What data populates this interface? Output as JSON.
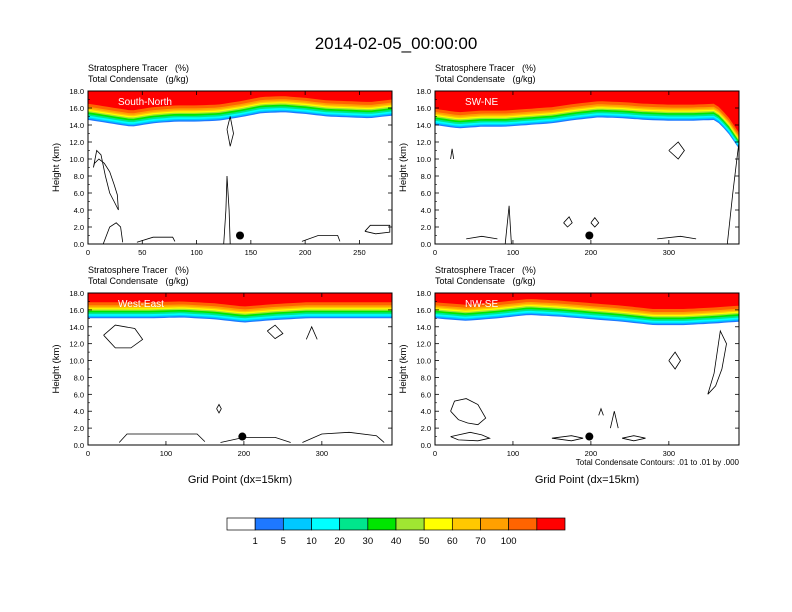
{
  "title": "2014-02-05_00:00:00",
  "colors": {
    "levels": [
      "#ffffff",
      "#1e78ff",
      "#00c8ff",
      "#00ffff",
      "#00e68c",
      "#00e600",
      "#a0e632",
      "#ffff00",
      "#ffc800",
      "#ffa000",
      "#ff6400",
      "#ff0000"
    ]
  },
  "colorbar": {
    "labels": [
      "1",
      "5",
      "10",
      "20",
      "30",
      "40",
      "50",
      "60",
      "70",
      "100"
    ]
  },
  "footnote": "Total Condensate Contours: .01 to .01 by .000",
  "chart_data": [
    {
      "type": "heatmap",
      "name": "South-North",
      "label": "South-North",
      "subtitle_line1": "Stratosphere Tracer   (%)",
      "subtitle_line2": "Total Condensate   (g/kg)",
      "ylabel": "Height (km)",
      "xlabel": "",
      "xlim": [
        0,
        280
      ],
      "ylim": [
        0,
        18
      ],
      "xticks": [
        0,
        50,
        100,
        150,
        200,
        250
      ],
      "yticks": [
        0,
        2,
        4,
        6,
        8,
        10,
        12,
        14,
        16,
        18
      ],
      "ytick_labels": [
        "0.0",
        "2.0",
        "4.0",
        "6.0",
        "8.0",
        "10.0",
        "12.0",
        "14.0",
        "16.0",
        "18.0"
      ],
      "marker_x": 140,
      "tracer_base_profile_x": [
        0,
        20,
        40,
        60,
        80,
        100,
        120,
        140,
        160,
        180,
        200,
        220,
        240,
        260,
        280
      ],
      "tracer_base_profile_km": [
        14.6,
        14.2,
        13.8,
        14.2,
        14.4,
        14.4,
        14.5,
        14.9,
        15.4,
        15.5,
        15.3,
        15.0,
        14.9,
        14.8,
        15.1
      ]
    },
    {
      "type": "heatmap",
      "name": "SW-NE",
      "label": "SW-NE",
      "subtitle_line1": "Stratosphere Tracer   (%)",
      "subtitle_line2": "Total Condensate   (g/kg)",
      "ylabel": "Height (km)",
      "xlabel": "",
      "xlim": [
        0,
        390
      ],
      "ylim": [
        0,
        18
      ],
      "xticks": [
        0,
        100,
        200,
        300
      ],
      "yticks": [
        0,
        2,
        4,
        6,
        8,
        10,
        12,
        14,
        16,
        18
      ],
      "ytick_labels": [
        "0.0",
        "2.0",
        "4.0",
        "6.0",
        "8.0",
        "10.0",
        "12.0",
        "14.0",
        "16.0",
        "18.0"
      ],
      "marker_x": 198,
      "tracer_base_profile_x": [
        0,
        30,
        60,
        90,
        120,
        150,
        180,
        210,
        240,
        270,
        300,
        330,
        360,
        375,
        390
      ],
      "tracer_base_profile_km": [
        14.0,
        13.6,
        13.8,
        13.8,
        14.0,
        14.2,
        14.6,
        14.9,
        14.8,
        14.6,
        14.5,
        14.5,
        14.6,
        13.2,
        11.2
      ]
    },
    {
      "type": "heatmap",
      "name": "West-East",
      "label": "West-East",
      "subtitle_line1": "Stratosphere Tracer   (%)",
      "subtitle_line2": "Total Condensate   (g/kg)",
      "ylabel": "Height (km)",
      "xlabel": "Grid Point (dx=15km)",
      "xlim": [
        0,
        390
      ],
      "ylim": [
        0,
        18
      ],
      "xticks": [
        0,
        100,
        200,
        300
      ],
      "yticks": [
        0,
        2,
        4,
        6,
        8,
        10,
        12,
        14,
        16,
        18
      ],
      "ytick_labels": [
        "0.0",
        "2.0",
        "4.0",
        "6.0",
        "8.0",
        "10.0",
        "12.0",
        "14.0",
        "16.0",
        "18.0"
      ],
      "marker_x": 198,
      "tracer_base_profile_x": [
        0,
        40,
        80,
        120,
        160,
        200,
        240,
        280,
        320,
        360,
        390
      ],
      "tracer_base_profile_km": [
        15.0,
        15.0,
        15.0,
        15.1,
        14.9,
        14.5,
        14.8,
        15.0,
        15.0,
        15.0,
        15.0
      ]
    },
    {
      "type": "heatmap",
      "name": "NW-SE",
      "label": "NW-SE",
      "subtitle_line1": "Stratosphere Tracer   (%)",
      "subtitle_line2": "Total Condensate   (g/kg)",
      "ylabel": "Height (km)",
      "xlabel": "Grid Point (dx=15km)",
      "xlim": [
        0,
        390
      ],
      "ylim": [
        0,
        18
      ],
      "xticks": [
        0,
        100,
        200,
        300
      ],
      "yticks": [
        0,
        2,
        4,
        6,
        8,
        10,
        12,
        14,
        16,
        18
      ],
      "ytick_labels": [
        "0.0",
        "2.0",
        "4.0",
        "6.0",
        "8.0",
        "10.0",
        "12.0",
        "14.0",
        "16.0",
        "18.0"
      ],
      "marker_x": 198,
      "tracer_base_profile_x": [
        0,
        40,
        80,
        120,
        160,
        200,
        240,
        280,
        320,
        360,
        390
      ],
      "tracer_base_profile_km": [
        15.0,
        14.7,
        15.0,
        15.4,
        15.2,
        14.9,
        14.6,
        14.2,
        14.2,
        14.4,
        14.6
      ]
    }
  ]
}
